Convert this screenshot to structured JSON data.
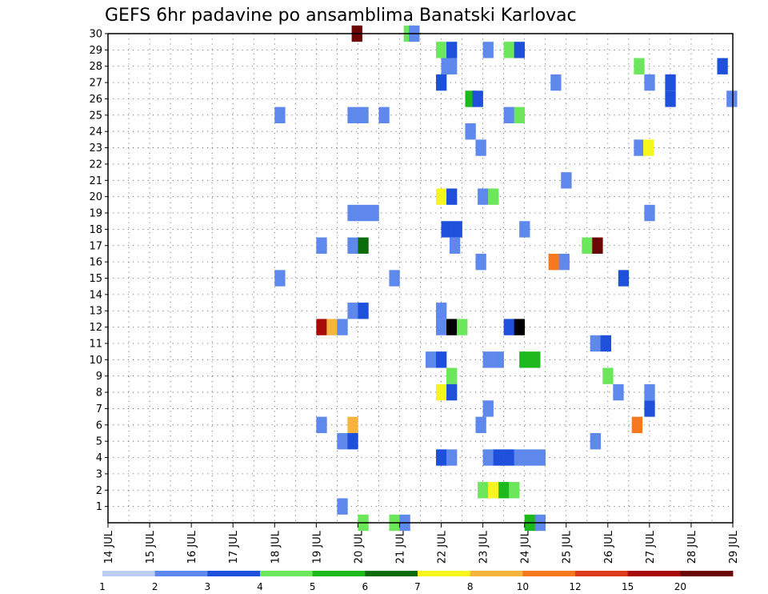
{
  "chart_data": {
    "type": "heatmap",
    "title": "GEFS 6hr padavine po ansamblima Banatski Karlovac",
    "x_axis": {
      "tick_labels": [
        "14 JUL",
        "15 JUL",
        "16 JUL",
        "17 JUL",
        "18 JUL",
        "19 JUL",
        "20 JUL",
        "21 JUL",
        "22 JUL",
        "23 JUL",
        "24 JUL",
        "25 JUL",
        "26 JUL",
        "27 JUL",
        "28 JUL",
        "29 JUL"
      ],
      "steps_per_day": 4,
      "range_steps": [
        0,
        60
      ],
      "grid": "dotted, 6-hourly"
    },
    "y_axis": {
      "tick_labels": [
        "1",
        "2",
        "3",
        "4",
        "5",
        "6",
        "7",
        "8",
        "9",
        "10",
        "11",
        "12",
        "13",
        "14",
        "15",
        "16",
        "17",
        "18",
        "19",
        "20",
        "21",
        "22",
        "23",
        "24",
        "25",
        "26",
        "27",
        "28",
        "29",
        "30"
      ],
      "range": [
        0,
        30
      ],
      "grid": "dotted"
    },
    "colorbar": {
      "labels": [
        "1",
        "2",
        "3",
        "4",
        "5",
        "6",
        "7",
        "8",
        "10",
        "12",
        "15",
        "20"
      ],
      "colors": [
        "#bcccf6",
        "#5e88ec",
        "#1e50dc",
        "#6ce65a",
        "#1cb81c",
        "#0c6c0c",
        "#f6f61e",
        "#f6b43c",
        "#f6781e",
        "#dc3c1c",
        "#a80a0a",
        "#6a0606"
      ]
    },
    "cells": [
      {
        "m": 30,
        "c": [
          [
            23.9,
            11
          ],
          [
            28.9,
            3
          ],
          [
            29.4,
            1
          ]
        ]
      },
      {
        "m": 29,
        "c": [
          [
            32.0,
            3
          ],
          [
            33.0,
            2
          ],
          [
            36.5,
            1
          ],
          [
            38.5,
            3
          ],
          [
            39.5,
            2
          ]
        ]
      },
      {
        "m": 28,
        "c": [
          [
            32.5,
            1
          ],
          [
            33.0,
            1
          ],
          [
            51.0,
            3
          ],
          [
            59.0,
            2
          ]
        ]
      },
      {
        "m": 27,
        "c": [
          [
            32.0,
            2
          ],
          [
            43.0,
            1
          ],
          [
            52.0,
            1
          ],
          [
            54.0,
            2
          ]
        ]
      },
      {
        "m": 26,
        "c": [
          [
            34.8,
            4
          ],
          [
            35.5,
            2
          ],
          [
            54.0,
            2
          ],
          [
            59.9,
            1
          ]
        ]
      },
      {
        "m": 25,
        "c": [
          [
            16.5,
            1
          ],
          [
            23.5,
            1
          ],
          [
            24.5,
            1
          ],
          [
            26.5,
            1
          ],
          [
            38.5,
            1
          ],
          [
            39.5,
            3
          ]
        ]
      },
      {
        "m": 24,
        "c": [
          [
            34.8,
            1
          ]
        ]
      },
      {
        "m": 23,
        "c": [
          [
            35.8,
            1
          ],
          [
            51.0,
            1
          ],
          [
            51.9,
            6
          ]
        ]
      },
      {
        "m": 21,
        "c": [
          [
            44.0,
            1
          ]
        ]
      },
      {
        "m": 20,
        "c": [
          [
            32.0,
            6
          ],
          [
            33.0,
            2
          ],
          [
            36.0,
            1
          ],
          [
            37.0,
            3
          ]
        ]
      },
      {
        "m": 19,
        "c": [
          [
            23.5,
            1
          ],
          [
            24.5,
            1
          ],
          [
            25.5,
            1
          ],
          [
            52.0,
            1
          ]
        ]
      },
      {
        "m": 18,
        "c": [
          [
            32.5,
            2
          ],
          [
            33.5,
            2
          ],
          [
            40.0,
            1
          ]
        ]
      },
      {
        "m": 17,
        "c": [
          [
            20.5,
            1
          ],
          [
            23.5,
            1
          ],
          [
            24.5,
            5
          ],
          [
            33.3,
            1
          ],
          [
            46.0,
            3
          ],
          [
            47.0,
            11
          ]
        ]
      },
      {
        "m": 16,
        "c": [
          [
            42.8,
            8
          ],
          [
            43.8,
            1
          ],
          [
            35.8,
            1
          ]
        ]
      },
      {
        "m": 15,
        "c": [
          [
            16.5,
            1
          ],
          [
            27.5,
            1
          ],
          [
            49.5,
            2
          ]
        ]
      },
      {
        "m": 13,
        "c": [
          [
            23.5,
            1
          ],
          [
            24.5,
            2
          ],
          [
            32.0,
            1
          ]
        ]
      },
      {
        "m": 12,
        "c": [
          [
            20.5,
            10
          ],
          [
            21.5,
            7
          ],
          [
            22.5,
            1
          ],
          [
            32.0,
            1
          ],
          [
            33.0,
            12
          ],
          [
            34.0,
            3
          ],
          [
            38.5,
            2
          ],
          [
            39.5,
            12
          ]
        ]
      },
      {
        "m": 11,
        "c": [
          [
            46.8,
            1
          ],
          [
            47.8,
            2
          ]
        ]
      },
      {
        "m": 10,
        "c": [
          [
            31.0,
            1
          ],
          [
            32.0,
            2
          ],
          [
            36.5,
            1
          ],
          [
            37.5,
            1
          ],
          [
            40.0,
            4
          ],
          [
            41.0,
            4
          ]
        ]
      },
      {
        "m": 9,
        "c": [
          [
            33.0,
            3
          ],
          [
            48.0,
            3
          ]
        ]
      },
      {
        "m": 8,
        "c": [
          [
            32.0,
            6
          ],
          [
            33.0,
            2
          ],
          [
            49.0,
            1
          ],
          [
            52.0,
            1
          ]
        ]
      },
      {
        "m": 7,
        "c": [
          [
            36.5,
            1
          ],
          [
            52.0,
            2
          ]
        ]
      },
      {
        "m": 6,
        "c": [
          [
            20.5,
            1
          ],
          [
            23.5,
            7
          ],
          [
            35.8,
            1
          ],
          [
            50.8,
            8
          ]
        ]
      },
      {
        "m": 5,
        "c": [
          [
            22.5,
            1
          ],
          [
            23.5,
            2
          ],
          [
            46.8,
            1
          ]
        ]
      },
      {
        "m": 4,
        "c": [
          [
            32.0,
            2
          ],
          [
            33.0,
            1
          ],
          [
            36.5,
            1
          ],
          [
            37.5,
            2
          ],
          [
            38.5,
            2
          ],
          [
            39.5,
            1
          ],
          [
            40.5,
            1
          ],
          [
            41.5,
            1
          ]
        ]
      },
      {
        "m": 2,
        "c": [
          [
            36.0,
            3
          ],
          [
            37.0,
            6
          ],
          [
            38.0,
            4
          ],
          [
            39.0,
            3
          ]
        ]
      },
      {
        "m": 1,
        "c": [
          [
            22.5,
            1
          ]
        ]
      },
      {
        "m": 0,
        "c": [
          [
            24.5,
            3
          ],
          [
            27.5,
            3
          ],
          [
            28.5,
            1
          ],
          [
            40.5,
            4
          ],
          [
            41.5,
            1
          ]
        ]
      }
    ]
  }
}
